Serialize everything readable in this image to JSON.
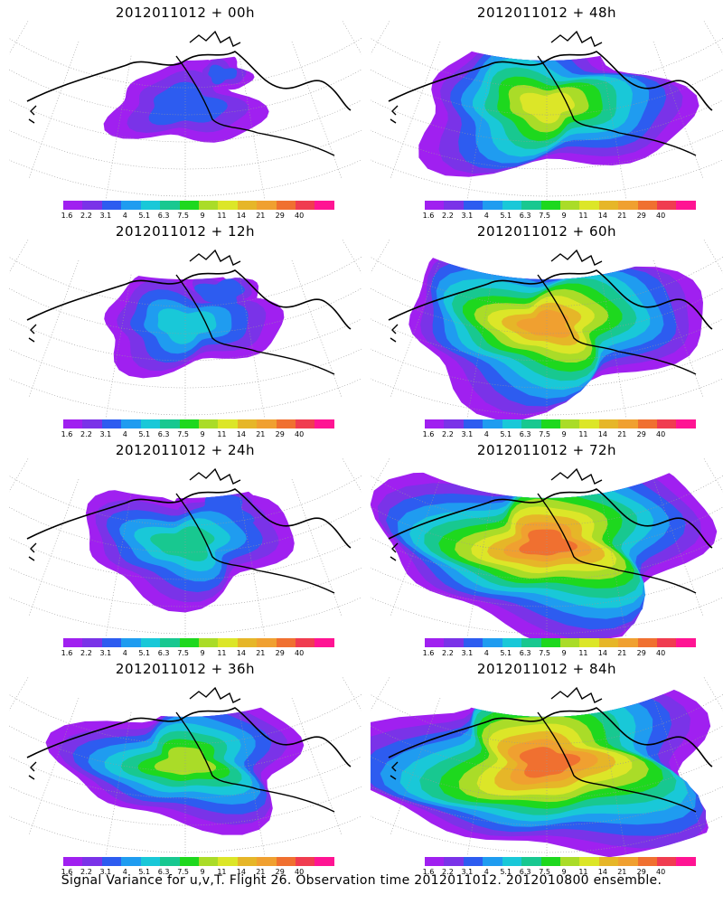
{
  "panels": [
    {
      "title": "2012011012 + 00h",
      "level": 0
    },
    {
      "title": "2012011012 + 48h",
      "level": 4
    },
    {
      "title": "2012011012 + 12h",
      "level": 1
    },
    {
      "title": "2012011012 + 60h",
      "level": 5
    },
    {
      "title": "2012011012 + 24h",
      "level": 2
    },
    {
      "title": "2012011012 + 72h",
      "level": 6
    },
    {
      "title": "2012011012 + 36h",
      "level": 3
    },
    {
      "title": "2012011012 + 84h",
      "level": 7
    }
  ],
  "colorbar": {
    "colors": [
      "#a020f0",
      "#7a33e8",
      "#2d5cf0",
      "#1f9cf0",
      "#19c8d8",
      "#18c890",
      "#1ed81e",
      "#aadc28",
      "#dce628",
      "#e6b628",
      "#f0a030",
      "#f07030",
      "#f03c50",
      "#ff1493"
    ],
    "labels": [
      "1.6",
      "2.2",
      "3.1",
      "4",
      "5.1",
      "6.3",
      "7.5",
      "9",
      "11",
      "14",
      "21",
      "29",
      "40"
    ]
  },
  "footer": "Signal Variance for u,v,T. Flight 26. Observation time 2012011012. 2012010800 ensemble."
}
